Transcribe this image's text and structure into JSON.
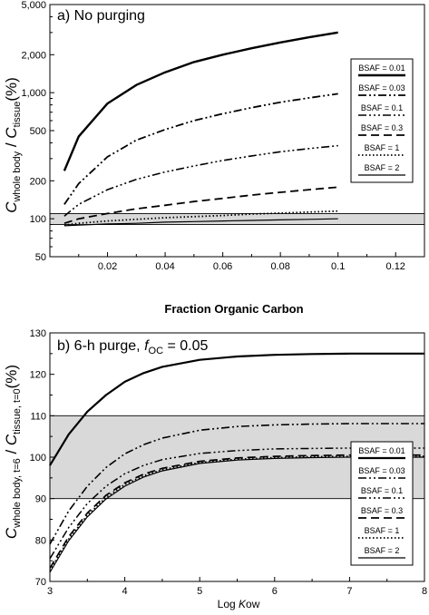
{
  "chart_data": [
    {
      "type": "line",
      "panel_title": "a) No purging",
      "xlabel": "Fraction Organic Carbon",
      "ylabel": {
        "var1": "C",
        "sub1": "whole body",
        "slash": " / ",
        "var2": "C",
        "sub2": "tissue",
        "unit": "(%)"
      },
      "xlim": [
        0,
        0.13
      ],
      "ylim": [
        50,
        5000
      ],
      "y_scale": "log",
      "x_ticks": [
        "0.02",
        "0.04",
        "0.06",
        "0.08",
        "0.1",
        "0.12"
      ],
      "y_ticks": [
        "50",
        "100",
        "200",
        "500",
        "1,000",
        "2,000",
        "5,000"
      ],
      "band": [
        90,
        110
      ],
      "band_color": "#d9d9d9",
      "legend_position": "right",
      "series": [
        {
          "name": "BSAF = 0.01",
          "dash": "solid",
          "width": 2.4,
          "x": [
            0.005,
            0.01,
            0.02,
            0.03,
            0.04,
            0.05,
            0.06,
            0.07,
            0.08,
            0.09,
            0.1
          ],
          "y": [
            240,
            450,
            820,
            1150,
            1450,
            1750,
            2000,
            2250,
            2500,
            2750,
            3000
          ]
        },
        {
          "name": "BSAF = 0.03",
          "dash": "dashdot2",
          "width": 1.8,
          "x": [
            0.005,
            0.01,
            0.02,
            0.03,
            0.04,
            0.05,
            0.06,
            0.07,
            0.08,
            0.09,
            0.1
          ],
          "y": [
            130,
            190,
            310,
            420,
            510,
            600,
            680,
            760,
            840,
            910,
            980
          ]
        },
        {
          "name": "BSAF = 0.1",
          "dash": "dashdot3",
          "width": 1.6,
          "x": [
            0.005,
            0.01,
            0.02,
            0.03,
            0.04,
            0.05,
            0.06,
            0.07,
            0.08,
            0.09,
            0.1
          ],
          "y": [
            105,
            130,
            170,
            205,
            235,
            262,
            290,
            315,
            340,
            360,
            380
          ]
        },
        {
          "name": "BSAF = 0.3",
          "dash": "dashed",
          "width": 1.8,
          "x": [
            0.005,
            0.01,
            0.02,
            0.03,
            0.04,
            0.05,
            0.06,
            0.07,
            0.08,
            0.09,
            0.1
          ],
          "y": [
            92,
            100,
            110,
            120,
            128,
            137,
            145,
            154,
            162,
            170,
            178
          ]
        },
        {
          "name": "BSAF = 1",
          "dash": "dotted",
          "width": 1.8,
          "x": [
            0.005,
            0.01,
            0.02,
            0.03,
            0.04,
            0.05,
            0.06,
            0.07,
            0.08,
            0.09,
            0.1
          ],
          "y": [
            89,
            92,
            96,
            99,
            102,
            104,
            106,
            109,
            111,
            113,
            115
          ]
        },
        {
          "name": "BSAF = 2",
          "dash": "solid",
          "width": 1.2,
          "x": [
            0.005,
            0.01,
            0.02,
            0.03,
            0.04,
            0.05,
            0.06,
            0.07,
            0.08,
            0.09,
            0.1
          ],
          "y": [
            88,
            89,
            91,
            92,
            94,
            95,
            96,
            97,
            98,
            99,
            100
          ]
        }
      ]
    },
    {
      "type": "line",
      "panel_title": "b) 6-h purge, ",
      "panel_title_var": "f",
      "panel_title_sub": "OC",
      "panel_title_tail": " = 0.05",
      "xlabel_pre": "Log ",
      "xlabel_var": "K",
      "xlabel_post": "ow",
      "ylabel": {
        "var1": "C",
        "sub1": "whole body, t=6",
        "slash": " / ",
        "var2": "C",
        "sub2": "tissue, t=0",
        "unit": "(%)"
      },
      "xlim": [
        3,
        8
      ],
      "ylim": [
        70,
        130
      ],
      "y_scale": "linear",
      "x_ticks": [
        "3",
        "4",
        "5",
        "6",
        "7",
        "8"
      ],
      "y_ticks": [
        "70",
        "80",
        "90",
        "100",
        "110",
        "120",
        "130"
      ],
      "band": [
        90,
        110
      ],
      "band_color": "#d9d9d9",
      "legend_position": "bottom-right",
      "series": [
        {
          "name": "BSAF = 0.01",
          "dash": "solid",
          "width": 2.2,
          "x": [
            3,
            3.25,
            3.5,
            3.75,
            4,
            4.25,
            4.5,
            5,
            5.5,
            6,
            6.5,
            7,
            7.5,
            8
          ],
          "y": [
            98,
            105.5,
            111,
            115,
            118.2,
            120.3,
            121.8,
            123.5,
            124.3,
            124.7,
            124.9,
            125,
            125,
            125
          ]
        },
        {
          "name": "BSAF = 0.03",
          "dash": "dashdot2",
          "width": 1.6,
          "x": [
            3,
            3.25,
            3.5,
            3.75,
            4,
            4.25,
            4.5,
            5,
            5.5,
            6,
            6.5,
            7,
            7.5,
            8
          ],
          "y": [
            79,
            87,
            93,
            97.5,
            100.8,
            103,
            104.6,
            106.5,
            107.4,
            107.8,
            108,
            108.1,
            108.1,
            108.1
          ]
        },
        {
          "name": "BSAF = 0.1",
          "dash": "dashdot3",
          "width": 1.5,
          "x": [
            3,
            3.25,
            3.5,
            3.75,
            4,
            4.25,
            4.5,
            5,
            5.5,
            6,
            6.5,
            7,
            7.5,
            8
          ],
          "y": [
            75.5,
            83,
            88.8,
            93,
            96,
            98,
            99.4,
            100.9,
            101.6,
            102,
            102.1,
            102.2,
            102.2,
            102.2
          ]
        },
        {
          "name": "BSAF = 0.3",
          "dash": "dashed",
          "width": 1.7,
          "x": [
            3,
            3.25,
            3.5,
            3.75,
            4,
            4.25,
            4.5,
            5,
            5.5,
            6,
            6.5,
            7,
            7.5,
            8
          ],
          "y": [
            73.2,
            80.8,
            86.5,
            90.8,
            93.8,
            95.9,
            97.3,
            99,
            99.8,
            100.2,
            100.4,
            100.5,
            100.5,
            100.5
          ]
        },
        {
          "name": "BSAF = 1",
          "dash": "dotted",
          "width": 1.7,
          "x": [
            3,
            3.25,
            3.5,
            3.75,
            4,
            4.25,
            4.5,
            5,
            5.5,
            6,
            6.5,
            7,
            7.5,
            8
          ],
          "y": [
            72.6,
            80.2,
            86,
            90.3,
            93.4,
            95.5,
            97,
            98.7,
            99.5,
            99.9,
            100.1,
            100.2,
            100.2,
            100.2
          ]
        },
        {
          "name": "BSAF = 2",
          "dash": "solid",
          "width": 1.2,
          "x": [
            3,
            3.25,
            3.5,
            3.75,
            4,
            4.25,
            4.5,
            5,
            5.5,
            6,
            6.5,
            7,
            7.5,
            8
          ],
          "y": [
            72.2,
            79.8,
            85.6,
            89.9,
            93,
            95.2,
            96.7,
            98.5,
            99.3,
            99.7,
            99.9,
            100,
            100,
            100
          ]
        }
      ]
    }
  ]
}
